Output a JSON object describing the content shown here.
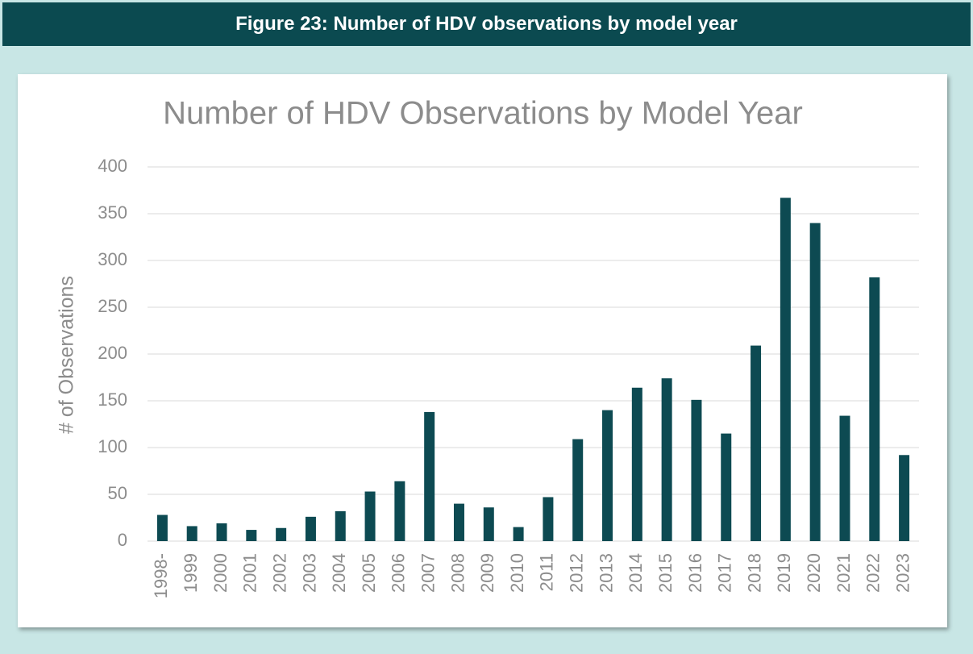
{
  "figure_caption": "Figure 23: Number of HDV observations by model year",
  "chart_data": {
    "type": "bar",
    "title": "Number of HDV Observations by Model Year",
    "y_label": "# of Observations",
    "categories": [
      "1998-",
      "1999",
      "2000",
      "2001",
      "2002",
      "2003",
      "2004",
      "2005",
      "2006",
      "2007",
      "2008",
      "2009",
      "2010",
      "2011",
      "2012",
      "2013",
      "2014",
      "2015",
      "2016",
      "2017",
      "2018",
      "2019",
      "2020",
      "2021",
      "2022",
      "2023"
    ],
    "values": [
      28,
      16,
      19,
      12,
      14,
      26,
      32,
      53,
      64,
      138,
      40,
      36,
      15,
      47,
      109,
      140,
      164,
      174,
      151,
      115,
      209,
      367,
      340,
      134,
      282,
      92
    ],
    "color": "#0d4a52",
    "ylim": [
      0,
      400
    ],
    "yticks": [
      0,
      50,
      100,
      150,
      200,
      250,
      300,
      350,
      400
    ],
    "grid": true
  }
}
